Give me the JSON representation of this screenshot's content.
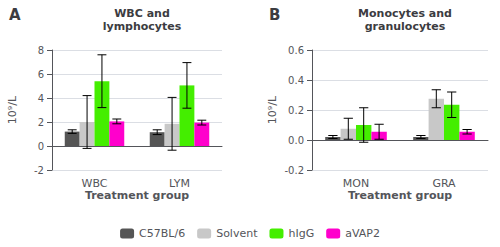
{
  "chart_data": [
    {
      "type": "bar",
      "title": "WBC and\nlymphocytes",
      "annotations": [
        "A"
      ],
      "xlabel": "Treatment group",
      "ylabel": "10⁹/L",
      "categories": [
        "WBC",
        "LYM"
      ],
      "series": [
        {
          "name": "C57BL/6",
          "color": "#555555",
          "values": [
            1.2,
            1.15
          ],
          "errors": [
            0.15,
            0.2
          ]
        },
        {
          "name": "Solvent",
          "color": "#c8c8c8",
          "values": [
            2.0,
            1.85
          ],
          "errors": [
            2.2,
            2.2
          ]
        },
        {
          "name": "hIgG",
          "color": "#44ee00",
          "values": [
            5.4,
            5.05
          ],
          "errors": [
            2.2,
            1.9
          ]
        },
        {
          "name": "aVAP2",
          "color": "#ff00cc",
          "values": [
            2.05,
            1.95
          ],
          "errors": [
            0.2,
            0.2
          ]
        }
      ],
      "ylim": [
        -2,
        8
      ],
      "yticks": [
        -2,
        0,
        2,
        4,
        6,
        8
      ],
      "grid": true,
      "legend": "bottom"
    },
    {
      "type": "bar",
      "title": "Monocytes and\ngranulocytes",
      "annotations": [
        "B"
      ],
      "xlabel": "Treatment group",
      "ylabel": "10⁹/L",
      "categories": [
        "MON",
        "GRA"
      ],
      "series": [
        {
          "name": "C57BL/6",
          "color": "#555555",
          "values": [
            0.02,
            0.02
          ],
          "errors": [
            0.01,
            0.01
          ]
        },
        {
          "name": "Solvent",
          "color": "#c8c8c8",
          "values": [
            0.075,
            0.275
          ],
          "errors": [
            0.07,
            0.06
          ]
        },
        {
          "name": "hIgG",
          "color": "#44ee00",
          "values": [
            0.1,
            0.235
          ],
          "errors": [
            0.115,
            0.085
          ]
        },
        {
          "name": "aVAP2",
          "color": "#ff00cc",
          "values": [
            0.055,
            0.055
          ],
          "errors": [
            0.05,
            0.015
          ]
        }
      ],
      "ylim": [
        -0.2,
        0.6
      ],
      "yticks": [
        -0.2,
        {
          "value": 0,
          "label": "0.0"
        },
        0.2,
        0.4,
        0.6
      ],
      "grid": true,
      "legend": "bottom"
    }
  ]
}
